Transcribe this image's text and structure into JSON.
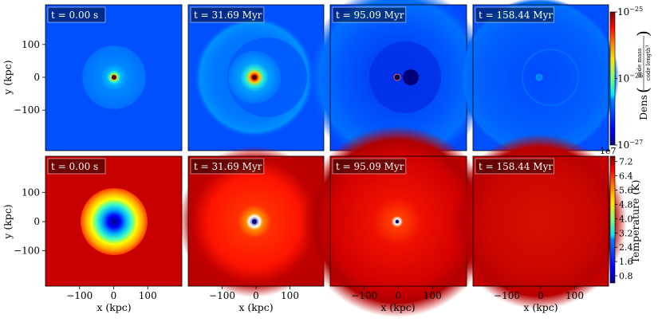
{
  "chart_data": {
    "type": "heatmap",
    "x": {
      "label": "x  (kpc)",
      "ticks": [
        {
          "value": -100,
          "label": "−100"
        },
        {
          "value": 0,
          "label": "0"
        },
        {
          "value": 100,
          "label": "100"
        }
      ],
      "range": [
        -200,
        200
      ]
    },
    "y": {
      "label": "y  (kpc)",
      "ticks": [
        {
          "value": 100,
          "label": "100"
        },
        {
          "value": 0,
          "label": "0"
        },
        {
          "value": -100,
          "label": "−100"
        }
      ],
      "range": [
        -200,
        200
      ]
    },
    "rows": [
      {
        "field": "density",
        "colorbar_label": "Dens",
        "colorbar_unit_numerator": "code mass",
        "colorbar_unit_denominator": "code length³",
        "log_scale": true,
        "colorbar_ticks": [
          {
            "value": 1e-25,
            "base": "10",
            "exp": "−25"
          },
          {
            "value": 1e-26,
            "base": "10",
            "exp": "−26"
          },
          {
            "value": 1e-27,
            "base": "10",
            "exp": "−27"
          }
        ],
        "range": [
          1e-27,
          1e-25
        ],
        "panels": [
          {
            "time": "t = 0.00 s"
          },
          {
            "time": "t = 31.69 Myr"
          },
          {
            "time": "t = 95.09 Myr"
          },
          {
            "time": "t = 158.44 Myr"
          }
        ]
      },
      {
        "field": "temperature",
        "colorbar_label": "Temperature  (K)",
        "colorbar_multiplier": "1e7",
        "log_scale": false,
        "colorbar_ticks": [
          {
            "value": 7.2,
            "label": "7.2"
          },
          {
            "value": 6.4,
            "label": "6.4"
          },
          {
            "value": 5.6,
            "label": "5.6"
          },
          {
            "value": 4.8,
            "label": "4.8"
          },
          {
            "value": 4.0,
            "label": "4.0"
          },
          {
            "value": 3.2,
            "label": "3.2"
          },
          {
            "value": 2.4,
            "label": "2.4"
          },
          {
            "value": 1.6,
            "label": "1.6"
          },
          {
            "value": 0.8,
            "label": "0.8"
          }
        ],
        "range": [
          0.4,
          7.5
        ],
        "panels": [
          {
            "time": "t = 0.00 s"
          },
          {
            "time": "t = 31.69 Myr"
          },
          {
            "time": "t = 95.09 Myr"
          },
          {
            "time": "t = 158.44 Myr"
          }
        ]
      }
    ],
    "colormap": "jet"
  }
}
